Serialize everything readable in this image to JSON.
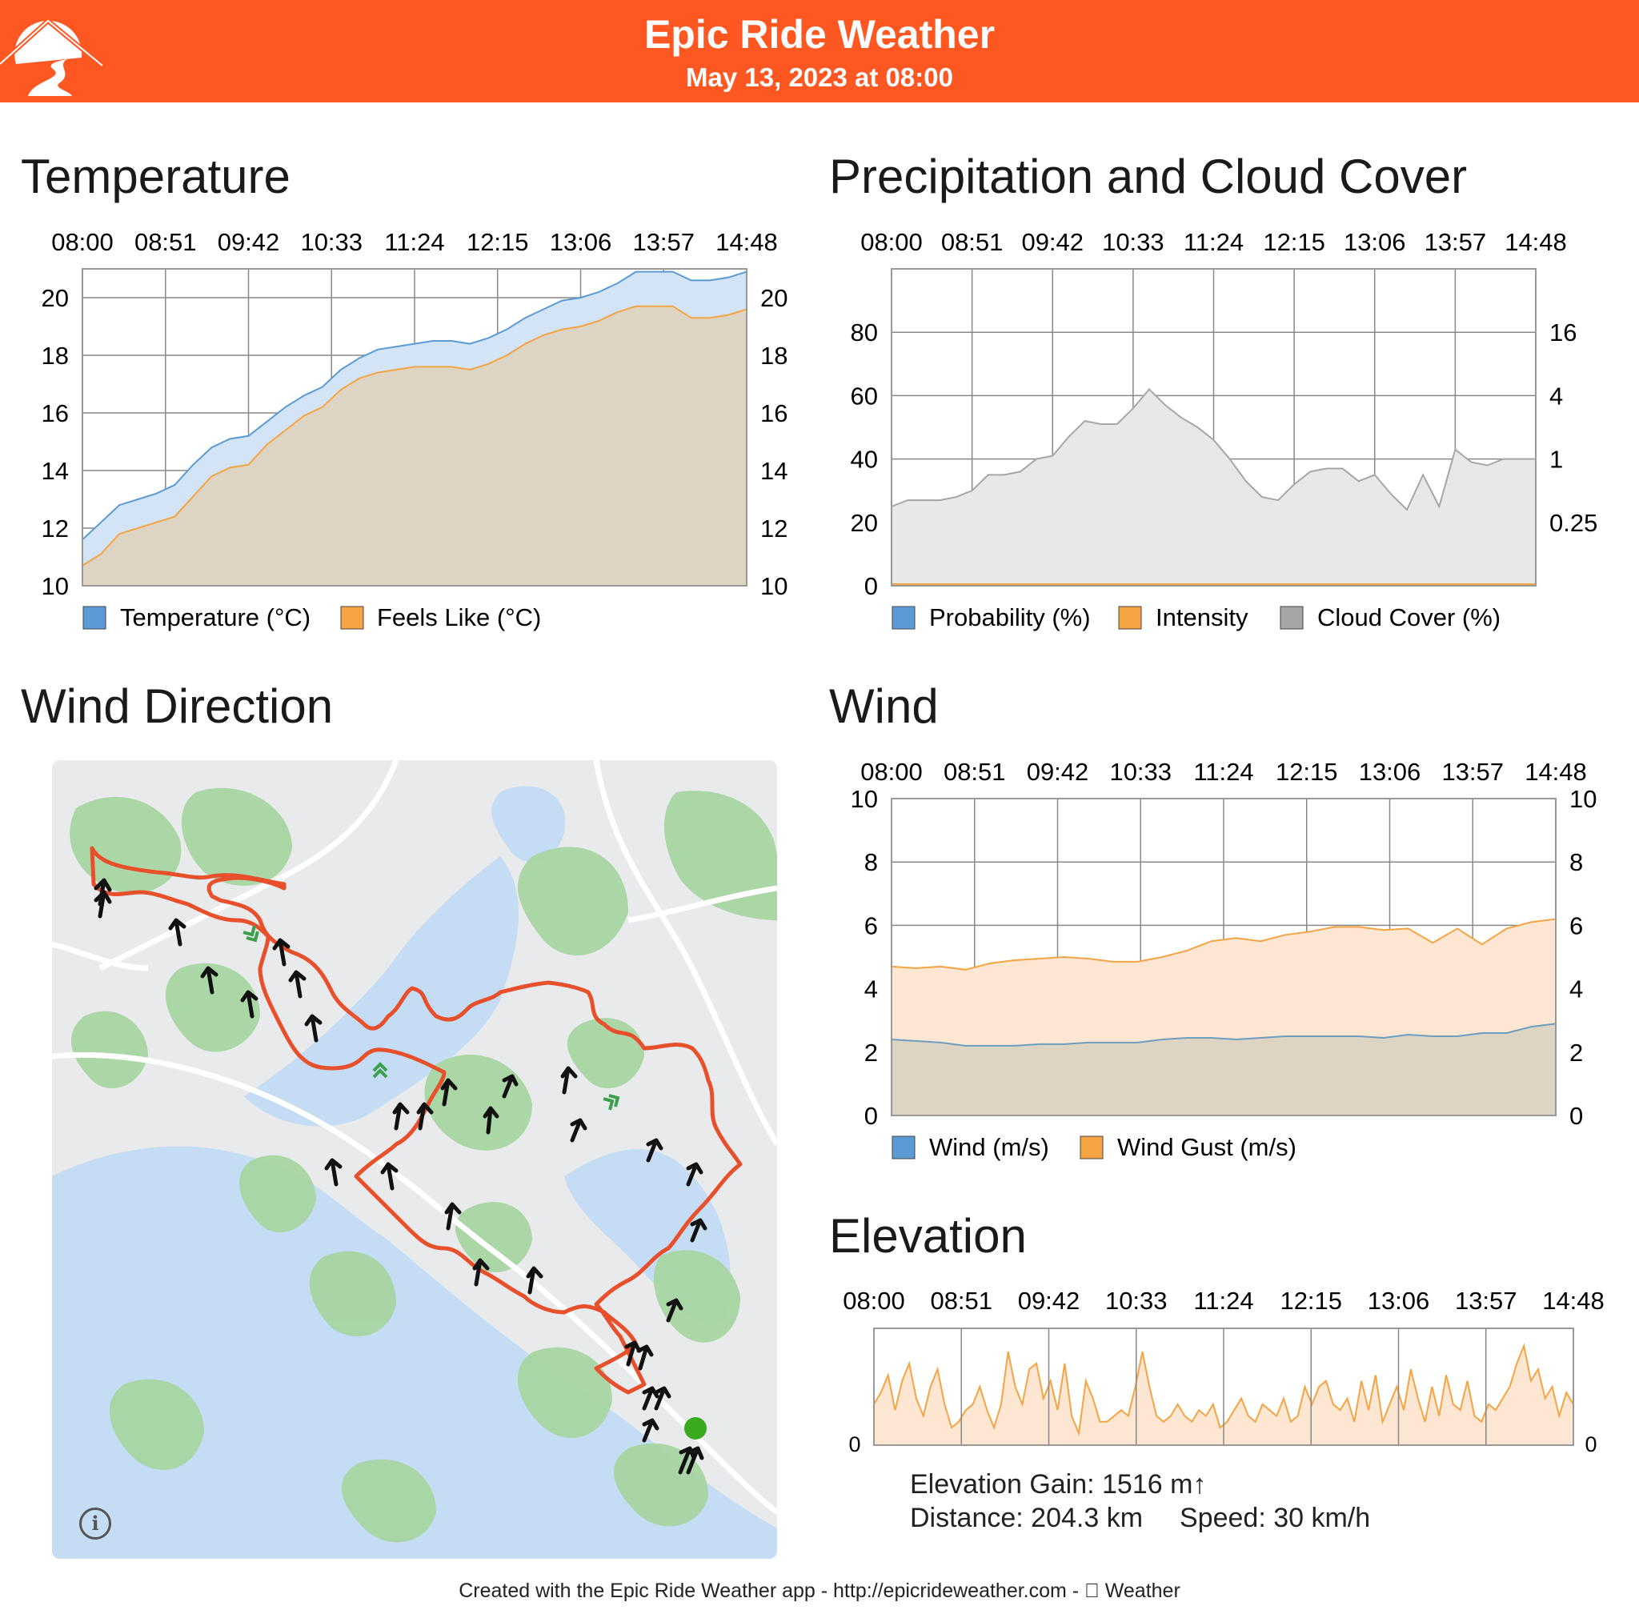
{
  "header": {
    "app_title": "Epic Ride Weather",
    "date_line": "May 13, 2023 at 08:00",
    "brand_color": "#fe5722"
  },
  "time_labels": [
    "08:00",
    "08:51",
    "09:42",
    "10:33",
    "11:24",
    "12:15",
    "13:06",
    "13:57",
    "14:48"
  ],
  "sections": {
    "temperature": "Temperature",
    "precipitation": "Precipitation and Cloud Cover",
    "wind_direction": "Wind Direction",
    "wind": "Wind",
    "elevation": "Elevation"
  },
  "chart_data": [
    {
      "id": "temperature",
      "type": "area",
      "title": "Temperature",
      "x_labels": [
        "08:00",
        "08:51",
        "09:42",
        "10:33",
        "11:24",
        "12:15",
        "13:06",
        "13:57",
        "14:48"
      ],
      "ylim": [
        10,
        21
      ],
      "y_ticks": [
        10,
        12,
        14,
        16,
        18,
        20
      ],
      "grid": true,
      "legend_position": "bottom",
      "series": [
        {
          "name": "Temperature (°C)",
          "color": "#5b9bd5",
          "values": [
            11.6,
            12.2,
            12.8,
            13.0,
            13.2,
            13.5,
            14.2,
            14.8,
            15.1,
            15.2,
            15.7,
            16.2,
            16.6,
            16.9,
            17.5,
            17.9,
            18.2,
            18.3,
            18.4,
            18.5,
            18.5,
            18.4,
            18.6,
            18.9,
            19.3,
            19.6,
            19.9,
            20.0,
            20.2,
            20.5,
            20.9,
            20.9,
            20.9,
            20.6,
            20.6,
            20.7,
            20.9
          ]
        },
        {
          "name": "Feels Like (°C)",
          "color": "#f5a443",
          "values": [
            10.7,
            11.1,
            11.8,
            12.0,
            12.2,
            12.4,
            13.1,
            13.8,
            14.1,
            14.2,
            14.9,
            15.4,
            15.9,
            16.2,
            16.8,
            17.2,
            17.4,
            17.5,
            17.6,
            17.6,
            17.6,
            17.5,
            17.7,
            18.0,
            18.4,
            18.7,
            18.9,
            19.0,
            19.2,
            19.5,
            19.7,
            19.7,
            19.7,
            19.3,
            19.3,
            19.4,
            19.6
          ]
        }
      ]
    },
    {
      "id": "precipitation",
      "type": "area",
      "title": "Precipitation and Cloud Cover",
      "x_labels": [
        "08:00",
        "08:51",
        "09:42",
        "10:33",
        "11:24",
        "12:15",
        "13:06",
        "13:57",
        "14:48"
      ],
      "ylim": [
        0,
        100
      ],
      "y_ticks": [
        0,
        20,
        40,
        60,
        80
      ],
      "right_axis_ticks": [
        "0.25",
        "1",
        "4",
        "16"
      ],
      "grid": true,
      "legend_position": "bottom",
      "series": [
        {
          "name": "Probability (%)",
          "color": "#5b9bd5",
          "values": [
            0,
            0,
            0,
            0,
            0,
            0,
            0,
            0,
            0,
            0,
            0,
            0,
            0,
            0,
            0,
            0,
            0,
            0,
            0,
            0,
            0,
            0,
            0,
            0,
            0,
            0,
            0,
            0,
            0,
            0,
            0,
            0,
            0,
            0,
            0,
            0,
            0,
            0,
            0,
            0,
            0
          ]
        },
        {
          "name": "Intensity",
          "color": "#f5a443",
          "values": [
            0,
            0,
            0,
            0,
            0,
            0,
            0,
            0,
            0,
            0,
            0,
            0,
            0,
            0,
            0,
            0,
            0,
            0,
            0,
            0,
            0,
            0,
            0,
            0,
            0,
            0,
            0,
            0,
            0,
            0,
            0,
            0,
            0,
            0,
            0,
            0,
            0,
            0,
            0,
            0,
            0
          ]
        },
        {
          "name": "Cloud Cover (%)",
          "color": "#a6a6a6",
          "values": [
            25,
            27,
            27,
            27,
            28,
            30,
            35,
            35,
            36,
            40,
            41,
            47,
            52,
            51,
            51,
            56,
            62,
            57,
            53,
            50,
            46,
            40,
            33,
            28,
            27,
            32,
            36,
            37,
            37,
            33,
            35,
            29,
            24,
            35,
            25,
            43,
            39,
            38,
            40,
            40,
            40
          ]
        }
      ]
    },
    {
      "id": "wind",
      "type": "area",
      "title": "Wind",
      "x_labels": [
        "08:00",
        "08:51",
        "09:42",
        "10:33",
        "11:24",
        "12:15",
        "13:06",
        "13:57",
        "14:48"
      ],
      "ylim": [
        0,
        10
      ],
      "y_ticks": [
        0,
        2,
        4,
        6,
        8,
        10
      ],
      "grid": true,
      "legend_position": "bottom",
      "series": [
        {
          "name": "Wind (m/s)",
          "color": "#5b9bd5",
          "values": [
            2.4,
            2.35,
            2.3,
            2.2,
            2.2,
            2.2,
            2.25,
            2.25,
            2.3,
            2.3,
            2.3,
            2.4,
            2.45,
            2.45,
            2.4,
            2.45,
            2.5,
            2.5,
            2.5,
            2.5,
            2.45,
            2.55,
            2.5,
            2.5,
            2.6,
            2.6,
            2.8,
            2.9
          ]
        },
        {
          "name": "Wind Gust (m/s)",
          "color": "#f5a443",
          "values": [
            4.7,
            4.65,
            4.7,
            4.6,
            4.8,
            4.9,
            4.95,
            5.0,
            4.95,
            4.85,
            4.85,
            5.0,
            5.2,
            5.5,
            5.6,
            5.5,
            5.7,
            5.8,
            5.95,
            5.95,
            5.85,
            5.9,
            5.45,
            5.9,
            5.4,
            5.9,
            6.1,
            6.2
          ]
        }
      ]
    },
    {
      "id": "elevation",
      "type": "area",
      "title": "Elevation",
      "x_labels": [
        "08:00",
        "08:51",
        "09:42",
        "10:33",
        "11:24",
        "12:15",
        "13:06",
        "13:57",
        "14:48"
      ],
      "y_ticks": [
        "0"
      ],
      "grid": true,
      "series": [
        {
          "name": "Elevation",
          "color": "#f5a443",
          "values": [
            0.35,
            0.45,
            0.6,
            0.3,
            0.55,
            0.7,
            0.4,
            0.25,
            0.5,
            0.65,
            0.35,
            0.15,
            0.2,
            0.3,
            0.35,
            0.5,
            0.3,
            0.15,
            0.35,
            0.8,
            0.5,
            0.35,
            0.65,
            0.7,
            0.4,
            0.55,
            0.3,
            0.7,
            0.25,
            0.1,
            0.55,
            0.4,
            0.2,
            0.2,
            0.25,
            0.3,
            0.25,
            0.5,
            0.8,
            0.5,
            0.25,
            0.2,
            0.25,
            0.35,
            0.25,
            0.2,
            0.3,
            0.25,
            0.35,
            0.15,
            0.2,
            0.3,
            0.4,
            0.25,
            0.2,
            0.35,
            0.3,
            0.25,
            0.4,
            0.2,
            0.25,
            0.5,
            0.35,
            0.5,
            0.55,
            0.35,
            0.3,
            0.4,
            0.2,
            0.55,
            0.3,
            0.6,
            0.2,
            0.35,
            0.5,
            0.3,
            0.65,
            0.4,
            0.2,
            0.5,
            0.25,
            0.6,
            0.35,
            0.3,
            0.55,
            0.25,
            0.2,
            0.35,
            0.3,
            0.4,
            0.5,
            0.7,
            0.85,
            0.55,
            0.65,
            0.4,
            0.5,
            0.25,
            0.45,
            0.35
          ]
        }
      ]
    }
  ],
  "temperature_legend": [
    "Temperature (°C)",
    "Feels Like (°C)"
  ],
  "precip_legend": [
    "Probability (%)",
    "Intensity",
    "Cloud Cover (%)"
  ],
  "wind_legend": [
    "Wind (m/s)",
    "Wind Gust (m/s)"
  ],
  "axis_text": {
    "temp": [
      "20",
      "18",
      "16",
      "14",
      "12",
      "10"
    ],
    "precip_left": [
      "80",
      "60",
      "40",
      "20",
      "0"
    ],
    "precip_right": [
      "16",
      "4",
      "1",
      "0.25"
    ],
    "wind": [
      "10",
      "8",
      "6",
      "4",
      "2",
      "0"
    ],
    "elev_zero": "0"
  },
  "map": {
    "info_icon": "info-icon",
    "route_color": "#e8502c",
    "water_color": "#c4dcf4",
    "forest_color": "#a8d5a2",
    "start_marker_color": "#3aaa1f"
  },
  "elevation_stats": {
    "gain": "Elevation Gain: 1516 m↑",
    "distance": "Distance: 204.3 km",
    "speed": "Speed: 30 km/h"
  },
  "footer": {
    "text": "Created with the Epic Ride Weather app - http://epicrideweather.com -  Weather"
  }
}
